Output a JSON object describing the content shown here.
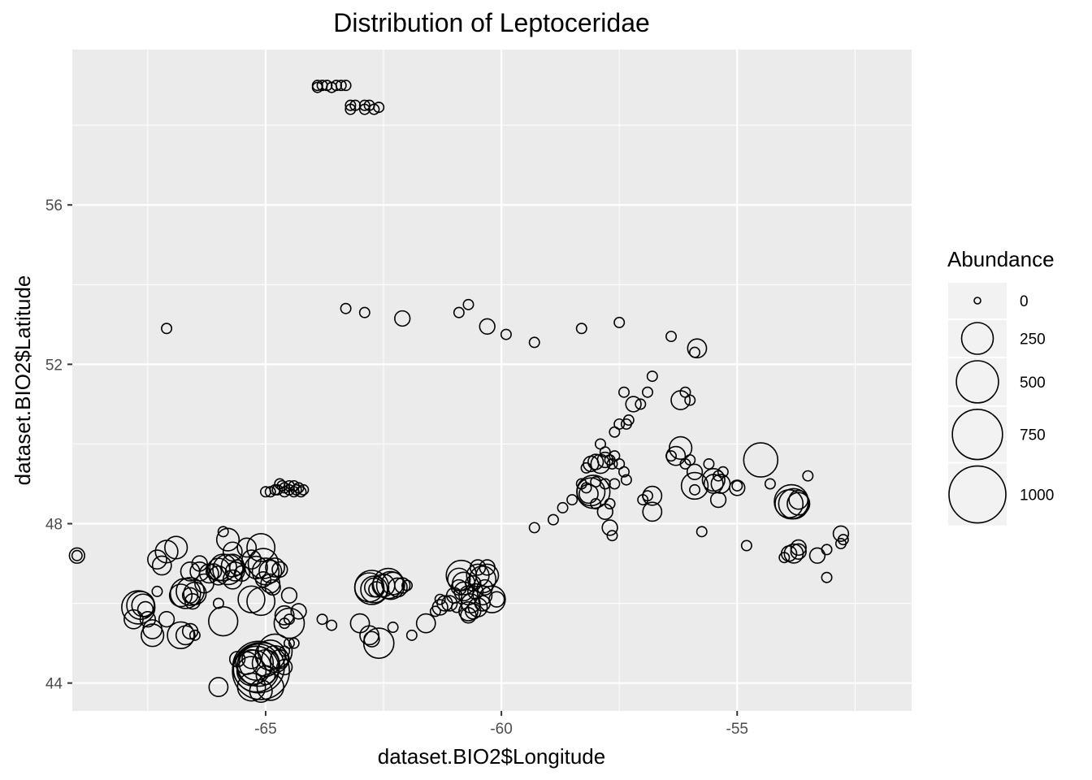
{
  "chart_data": {
    "type": "scatter",
    "title": "Distribution of Leptoceridae",
    "xlabel": "dataset.BIO2$Longitude",
    "ylabel": "dataset.BIO2$Latitude",
    "xlim": [
      -69.1,
      -51.3
    ],
    "ylim": [
      43.3,
      59.9
    ],
    "x_ticks": [
      -65,
      -60,
      -55
    ],
    "x_tick_labels": [
      "-65",
      "-60",
      "-55"
    ],
    "y_ticks": [
      44,
      48,
      52,
      56
    ],
    "y_tick_labels": [
      "44",
      "48",
      "52",
      "56"
    ],
    "grid": true,
    "legend": {
      "title": "Abundance",
      "position": "right",
      "entries": [
        {
          "label": "0",
          "value": 0
        },
        {
          "label": "250",
          "value": 250
        },
        {
          "label": "500",
          "value": 500
        },
        {
          "label": "750",
          "value": 750
        },
        {
          "label": "1000",
          "value": 1000
        }
      ]
    },
    "points": [
      [
        -63.9,
        59.0,
        5
      ],
      [
        -63.8,
        59.0,
        5
      ],
      [
        -63.7,
        59.0,
        5
      ],
      [
        -63.5,
        59.0,
        5
      ],
      [
        -63.4,
        59.0,
        5
      ],
      [
        -63.3,
        59.0,
        5
      ],
      [
        -63.9,
        58.95,
        5
      ],
      [
        -63.6,
        58.95,
        5
      ],
      [
        -63.2,
        58.5,
        5
      ],
      [
        -63.1,
        58.5,
        5
      ],
      [
        -62.9,
        58.5,
        5
      ],
      [
        -62.8,
        58.5,
        5
      ],
      [
        -62.6,
        58.45,
        5
      ],
      [
        -62.7,
        58.4,
        5
      ],
      [
        -62.9,
        58.4,
        5
      ],
      [
        -63.2,
        58.4,
        5
      ],
      [
        -63.3,
        53.4,
        5
      ],
      [
        -62.9,
        53.3,
        5
      ],
      [
        -62.1,
        53.15,
        30
      ],
      [
        -60.9,
        53.3,
        5
      ],
      [
        -60.7,
        53.5,
        5
      ],
      [
        -60.3,
        52.95,
        30
      ],
      [
        -59.9,
        52.75,
        5
      ],
      [
        -59.3,
        52.55,
        5
      ],
      [
        -58.3,
        52.9,
        5
      ],
      [
        -57.5,
        53.05,
        5
      ],
      [
        -56.4,
        52.7,
        5
      ],
      [
        -55.9,
        52.3,
        5
      ],
      [
        -55.85,
        52.4,
        60
      ],
      [
        -67.1,
        52.9,
        5
      ],
      [
        -57.4,
        51.3,
        5
      ],
      [
        -57.2,
        51.0,
        30
      ],
      [
        -57.05,
        51.0,
        5
      ],
      [
        -56.9,
        51.3,
        5
      ],
      [
        -56.8,
        51.7,
        5
      ],
      [
        -56.2,
        51.1,
        60
      ],
      [
        -56.1,
        51.3,
        5
      ],
      [
        -56.0,
        51.1,
        5
      ],
      [
        -57.6,
        50.3,
        5
      ],
      [
        -57.5,
        50.5,
        5
      ],
      [
        -57.35,
        50.5,
        5
      ],
      [
        -57.3,
        50.6,
        5
      ],
      [
        -57.9,
        50.0,
        5
      ],
      [
        -57.8,
        49.8,
        5
      ],
      [
        -57.6,
        49.7,
        5
      ],
      [
        -57.5,
        49.5,
        5
      ],
      [
        -57.4,
        49.3,
        5
      ],
      [
        -57.35,
        49.1,
        5
      ],
      [
        -57.65,
        49.5,
        5
      ],
      [
        -57.7,
        49.6,
        5
      ],
      [
        -57.8,
        49.6,
        30
      ],
      [
        -57.9,
        49.5,
        60
      ],
      [
        -58.0,
        49.55,
        30
      ],
      [
        -58.1,
        49.5,
        30
      ],
      [
        -58.2,
        49.4,
        5
      ],
      [
        -58.3,
        49.0,
        5
      ],
      [
        -58.2,
        48.9,
        5
      ],
      [
        -58.0,
        49.05,
        5
      ],
      [
        -58.05,
        48.8,
        280
      ],
      [
        -58.1,
        48.8,
        180
      ],
      [
        -58.15,
        48.75,
        60
      ],
      [
        -57.6,
        49.0,
        5
      ],
      [
        -57.8,
        49.0,
        5
      ],
      [
        -57.7,
        48.5,
        5
      ],
      [
        -57.8,
        48.3,
        30
      ],
      [
        -58.0,
        48.5,
        5
      ],
      [
        -58.5,
        48.6,
        5
      ],
      [
        -58.7,
        48.4,
        5
      ],
      [
        -58.9,
        48.1,
        5
      ],
      [
        -59.3,
        47.9,
        5
      ],
      [
        -57.7,
        47.9,
        30
      ],
      [
        -57.65,
        47.7,
        5
      ],
      [
        -57.0,
        48.6,
        5
      ],
      [
        -56.9,
        48.7,
        5
      ],
      [
        -56.8,
        48.7,
        60
      ],
      [
        -56.8,
        48.3,
        60
      ],
      [
        -56.4,
        49.7,
        5
      ],
      [
        -56.3,
        49.7,
        60
      ],
      [
        -56.2,
        49.9,
        100
      ],
      [
        -56.1,
        49.5,
        5
      ],
      [
        -56.0,
        49.6,
        5
      ],
      [
        -55.9,
        49.3,
        30
      ],
      [
        -55.9,
        48.85,
        5
      ],
      [
        -55.9,
        48.95,
        160
      ],
      [
        -55.75,
        47.8,
        5
      ],
      [
        -55.6,
        49.5,
        5
      ],
      [
        -55.4,
        49.2,
        5
      ],
      [
        -55.5,
        49.0,
        60
      ],
      [
        -55.5,
        49.1,
        100
      ],
      [
        -55.35,
        49.0,
        60
      ],
      [
        -55.3,
        49.3,
        5
      ],
      [
        -55.4,
        48.6,
        30
      ],
      [
        -54.5,
        49.6,
        300
      ],
      [
        -55.0,
        48.9,
        30
      ],
      [
        -55.0,
        48.95,
        5
      ],
      [
        -54.3,
        49.0,
        5
      ],
      [
        -53.7,
        48.6,
        60
      ],
      [
        -53.8,
        48.5,
        220
      ],
      [
        -53.9,
        48.5,
        180
      ],
      [
        -53.85,
        48.55,
        300
      ],
      [
        -53.7,
        48.5,
        100
      ],
      [
        -53.5,
        49.2,
        5
      ],
      [
        -54.8,
        47.45,
        5
      ],
      [
        -54.0,
        47.15,
        5
      ],
      [
        -53.9,
        47.25,
        30
      ],
      [
        -53.8,
        47.25,
        60
      ],
      [
        -53.7,
        47.3,
        30
      ],
      [
        -53.7,
        47.4,
        30
      ],
      [
        -53.3,
        47.2,
        30
      ],
      [
        -53.1,
        47.35,
        5
      ],
      [
        -52.8,
        47.5,
        5
      ],
      [
        -52.8,
        47.75,
        30
      ],
      [
        -52.75,
        47.6,
        5
      ],
      [
        -53.1,
        46.65,
        5
      ],
      [
        -65.0,
        48.8,
        5
      ],
      [
        -64.9,
        48.8,
        5
      ],
      [
        -64.8,
        48.85,
        5
      ],
      [
        -64.7,
        49.0,
        5
      ],
      [
        -64.65,
        48.95,
        5
      ],
      [
        -64.6,
        48.9,
        5
      ],
      [
        -64.5,
        48.85,
        5
      ],
      [
        -64.4,
        48.95,
        5
      ],
      [
        -64.35,
        48.85,
        5
      ],
      [
        -64.3,
        48.9,
        5
      ],
      [
        -64.25,
        48.8,
        5
      ],
      [
        -64.2,
        48.85,
        5
      ],
      [
        -64.5,
        48.95,
        5
      ],
      [
        -64.4,
        48.8,
        5
      ],
      [
        -64.75,
        48.85,
        5
      ],
      [
        -64.6,
        48.8,
        5
      ],
      [
        -69.0,
        47.2,
        30
      ],
      [
        -69.0,
        47.2,
        5
      ],
      [
        -67.8,
        45.6,
        60
      ],
      [
        -67.7,
        45.9,
        280
      ],
      [
        -67.65,
        45.95,
        180
      ],
      [
        -67.6,
        45.95,
        100
      ],
      [
        -67.55,
        45.85,
        30
      ],
      [
        -67.5,
        45.6,
        30
      ],
      [
        -67.4,
        45.2,
        100
      ],
      [
        -67.4,
        45.35,
        60
      ],
      [
        -67.3,
        46.3,
        5
      ],
      [
        -67.3,
        47.1,
        60
      ],
      [
        -67.1,
        47.3,
        100
      ],
      [
        -67.2,
        46.95,
        60
      ],
      [
        -67.1,
        45.6,
        30
      ],
      [
        -66.9,
        47.4,
        100
      ],
      [
        -66.8,
        46.2,
        100
      ],
      [
        -66.7,
        46.25,
        220
      ],
      [
        -66.6,
        46.3,
        180
      ],
      [
        -66.5,
        46.25,
        100
      ],
      [
        -66.6,
        46.8,
        60
      ],
      [
        -66.6,
        46.2,
        30
      ],
      [
        -66.8,
        45.2,
        160
      ],
      [
        -66.7,
        45.2,
        60
      ],
      [
        -66.6,
        45.3,
        30
      ],
      [
        -66.55,
        46.05,
        30
      ],
      [
        -66.5,
        45.2,
        5
      ],
      [
        -66.4,
        47.0,
        30
      ],
      [
        -66.4,
        46.8,
        60
      ],
      [
        -66.3,
        46.5,
        60
      ],
      [
        -66.2,
        46.75,
        60
      ],
      [
        -66.1,
        46.8,
        30
      ],
      [
        -66.0,
        46.7,
        60
      ],
      [
        -66.0,
        46.85,
        100
      ],
      [
        -65.9,
        46.9,
        160
      ],
      [
        -65.8,
        46.85,
        220
      ],
      [
        -65.7,
        46.95,
        100
      ],
      [
        -65.65,
        46.8,
        60
      ],
      [
        -65.6,
        46.9,
        30
      ],
      [
        -65.5,
        46.75,
        30
      ],
      [
        -66.0,
        46.0,
        5
      ],
      [
        -65.9,
        47.8,
        5
      ],
      [
        -65.8,
        47.6,
        100
      ],
      [
        -65.7,
        47.3,
        60
      ],
      [
        -65.7,
        46.6,
        60
      ],
      [
        -65.4,
        47.4,
        60
      ],
      [
        -65.3,
        47.1,
        60
      ],
      [
        -65.3,
        46.1,
        160
      ],
      [
        -65.2,
        46.9,
        100
      ],
      [
        -65.1,
        47.4,
        180
      ],
      [
        -65.05,
        47.0,
        220
      ],
      [
        -65.0,
        46.8,
        160
      ],
      [
        -64.9,
        46.8,
        100
      ],
      [
        -65.05,
        46.6,
        30
      ],
      [
        -64.9,
        46.5,
        60
      ],
      [
        -64.85,
        46.4,
        30
      ],
      [
        -64.8,
        46.9,
        60
      ],
      [
        -64.7,
        46.85,
        30
      ],
      [
        -65.9,
        45.55,
        200
      ],
      [
        -65.1,
        46.05,
        180
      ],
      [
        -66.0,
        43.9,
        60
      ],
      [
        -65.6,
        44.6,
        30
      ],
      [
        -65.4,
        44.5,
        100
      ],
      [
        -65.3,
        44.3,
        200
      ],
      [
        -65.25,
        44.4,
        300
      ],
      [
        -65.2,
        44.35,
        600
      ],
      [
        -65.15,
        44.4,
        800
      ],
      [
        -65.1,
        44.3,
        1000
      ],
      [
        -65.15,
        44.45,
        500
      ],
      [
        -65.2,
        44.5,
        300
      ],
      [
        -65.3,
        44.6,
        60
      ],
      [
        -65.0,
        44.5,
        160
      ],
      [
        -64.9,
        44.7,
        220
      ],
      [
        -64.8,
        44.6,
        160
      ],
      [
        -64.7,
        44.6,
        60
      ],
      [
        -64.6,
        44.4,
        30
      ],
      [
        -64.8,
        44.8,
        300
      ],
      [
        -64.6,
        44.8,
        5
      ],
      [
        -64.4,
        45.0,
        5
      ],
      [
        -64.5,
        45.0,
        5
      ],
      [
        -65.3,
        43.9,
        180
      ],
      [
        -65.1,
        43.8,
        100
      ],
      [
        -64.9,
        43.9,
        160
      ],
      [
        -65.0,
        44.2,
        60
      ],
      [
        -64.5,
        45.5,
        220
      ],
      [
        -64.3,
        45.8,
        30
      ],
      [
        -64.5,
        46.2,
        30
      ],
      [
        -64.6,
        45.7,
        60
      ],
      [
        -64.5,
        45.6,
        5
      ],
      [
        -64.6,
        45.5,
        5
      ],
      [
        -63.8,
        45.6,
        5
      ],
      [
        -63.6,
        45.45,
        5
      ],
      [
        -63.0,
        45.5,
        60
      ],
      [
        -62.8,
        45.2,
        60
      ],
      [
        -62.75,
        45.1,
        30
      ],
      [
        -62.6,
        45.0,
        220
      ],
      [
        -62.3,
        45.4,
        5
      ],
      [
        -61.9,
        45.2,
        5
      ],
      [
        -61.6,
        45.5,
        60
      ],
      [
        -62.8,
        46.4,
        200
      ],
      [
        -62.75,
        46.4,
        300
      ],
      [
        -62.7,
        46.35,
        160
      ],
      [
        -62.5,
        46.45,
        100
      ],
      [
        -62.4,
        46.5,
        220
      ],
      [
        -62.35,
        46.45,
        180
      ],
      [
        -62.3,
        46.5,
        100
      ],
      [
        -62.2,
        46.4,
        60
      ],
      [
        -62.1,
        46.45,
        30
      ],
      [
        -62.0,
        46.45,
        5
      ],
      [
        -62.7,
        46.4,
        60
      ],
      [
        -62.65,
        46.35,
        30
      ],
      [
        -61.4,
        45.8,
        5
      ],
      [
        -61.3,
        45.9,
        30
      ],
      [
        -61.2,
        46.0,
        30
      ],
      [
        -61.1,
        46.0,
        30
      ],
      [
        -61.3,
        46.1,
        5
      ],
      [
        -61.0,
        46.2,
        30
      ],
      [
        -60.9,
        46.6,
        100
      ],
      [
        -60.85,
        46.7,
        220
      ],
      [
        -60.8,
        46.5,
        100
      ],
      [
        -60.8,
        46.3,
        60
      ],
      [
        -60.7,
        46.2,
        60
      ],
      [
        -60.65,
        46.0,
        60
      ],
      [
        -60.7,
        45.8,
        60
      ],
      [
        -60.6,
        46.5,
        30
      ],
      [
        -60.55,
        46.3,
        30
      ],
      [
        -60.5,
        46.9,
        30
      ],
      [
        -60.5,
        46.7,
        100
      ],
      [
        -60.4,
        46.6,
        160
      ],
      [
        -60.3,
        46.7,
        100
      ],
      [
        -60.3,
        46.9,
        30
      ],
      [
        -60.35,
        46.4,
        30
      ],
      [
        -60.4,
        46.2,
        60
      ],
      [
        -60.2,
        46.1,
        160
      ],
      [
        -60.1,
        46.1,
        30
      ],
      [
        -60.4,
        46.0,
        30
      ],
      [
        -60.5,
        45.9,
        60
      ],
      [
        -60.6,
        45.8,
        30
      ],
      [
        -60.7,
        45.7,
        30
      ],
      [
        -60.9,
        46.4,
        30
      ],
      [
        -60.95,
        45.9,
        5
      ]
    ]
  }
}
